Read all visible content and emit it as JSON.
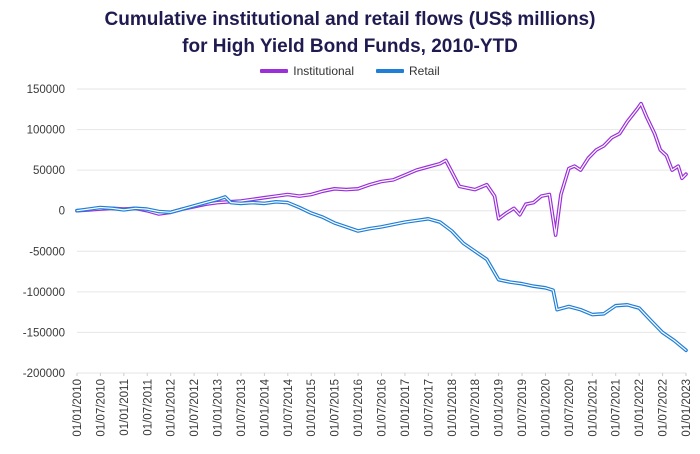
{
  "title_lines": [
    "Cumulative institutional and retail flows (US$ millions)",
    "for High Yield Bond Funds, 2010-YTD"
  ],
  "chart_data": {
    "type": "line",
    "ylim": [
      -200000,
      150000
    ],
    "yticks": [
      150000,
      100000,
      50000,
      0,
      -50000,
      -100000,
      -150000,
      -200000
    ],
    "ytick_labels": [
      "150000",
      "100000",
      "50000",
      "0",
      "-50000",
      "-100000",
      "-150000",
      "-200000"
    ],
    "xlim": [
      "2010-01-01",
      "2023-01-01"
    ],
    "xtick_labels": [
      "01/01/2010",
      "01/07/2010",
      "01/01/2011",
      "01/07/2011",
      "01/01/2012",
      "01/07/2012",
      "01/01/2013",
      "01/07/2013",
      "01/01/2014",
      "01/07/2014",
      "01/01/2015",
      "01/07/2015",
      "01/01/2016",
      "01/07/2016",
      "01/01/2017",
      "01/07/2017",
      "01/01/2018",
      "01/07/2018",
      "01/01/2019",
      "01/07/2019",
      "01/01/2020",
      "01/07/2020",
      "01/01/2021",
      "01/07/2021",
      "01/01/2022",
      "01/07/2022",
      "01/01/2023"
    ],
    "grid": true,
    "legend_position": "top-center",
    "series": [
      {
        "name": "Institutional",
        "color": "#9b30d9",
        "points": [
          [
            "2010-01-01",
            0
          ],
          [
            "2010-04-01",
            1000
          ],
          [
            "2010-07-01",
            2000
          ],
          [
            "2010-10-01",
            3000
          ],
          [
            "2011-01-01",
            2000
          ],
          [
            "2011-04-01",
            3000
          ],
          [
            "2011-07-01",
            0
          ],
          [
            "2011-10-01",
            -4000
          ],
          [
            "2012-01-01",
            -2000
          ],
          [
            "2012-04-01",
            2000
          ],
          [
            "2012-07-01",
            5000
          ],
          [
            "2012-10-01",
            8000
          ],
          [
            "2013-01-01",
            10000
          ],
          [
            "2013-04-01",
            11000
          ],
          [
            "2013-07-01",
            12000
          ],
          [
            "2013-10-01",
            14000
          ],
          [
            "2014-01-01",
            16000
          ],
          [
            "2014-04-01",
            18000
          ],
          [
            "2014-07-01",
            20000
          ],
          [
            "2014-10-01",
            18000
          ],
          [
            "2015-01-01",
            20000
          ],
          [
            "2015-04-01",
            24000
          ],
          [
            "2015-07-01",
            27000
          ],
          [
            "2015-10-01",
            26000
          ],
          [
            "2016-01-01",
            27000
          ],
          [
            "2016-04-01",
            32000
          ],
          [
            "2016-07-01",
            36000
          ],
          [
            "2016-10-01",
            38000
          ],
          [
            "2017-01-01",
            44000
          ],
          [
            "2017-04-01",
            50000
          ],
          [
            "2017-07-01",
            54000
          ],
          [
            "2017-10-01",
            58000
          ],
          [
            "2017-11-15",
            62000
          ],
          [
            "2018-01-01",
            48000
          ],
          [
            "2018-03-01",
            30000
          ],
          [
            "2018-05-01",
            28000
          ],
          [
            "2018-07-01",
            26000
          ],
          [
            "2018-10-01",
            32000
          ],
          [
            "2018-12-01",
            18000
          ],
          [
            "2019-01-01",
            -10000
          ],
          [
            "2019-03-01",
            -3000
          ],
          [
            "2019-05-01",
            3000
          ],
          [
            "2019-06-15",
            -5000
          ],
          [
            "2019-08-01",
            8000
          ],
          [
            "2019-10-01",
            10000
          ],
          [
            "2019-12-01",
            18000
          ],
          [
            "2020-02-01",
            20000
          ],
          [
            "2020-03-20",
            -30000
          ],
          [
            "2020-05-01",
            20000
          ],
          [
            "2020-07-01",
            52000
          ],
          [
            "2020-08-15",
            55000
          ],
          [
            "2020-10-01",
            50000
          ],
          [
            "2020-12-01",
            65000
          ],
          [
            "2021-02-01",
            75000
          ],
          [
            "2021-04-01",
            80000
          ],
          [
            "2021-06-01",
            90000
          ],
          [
            "2021-08-01",
            95000
          ],
          [
            "2021-10-01",
            110000
          ],
          [
            "2021-12-15",
            125000
          ],
          [
            "2022-01-15",
            132000
          ],
          [
            "2022-03-01",
            115000
          ],
          [
            "2022-05-01",
            95000
          ],
          [
            "2022-06-15",
            75000
          ],
          [
            "2022-08-01",
            68000
          ],
          [
            "2022-09-15",
            50000
          ],
          [
            "2022-11-01",
            55000
          ],
          [
            "2022-12-01",
            40000
          ],
          [
            "2023-01-01",
            45000
          ]
        ]
      },
      {
        "name": "Retail",
        "color": "#1f7fd6",
        "points": [
          [
            "2010-01-01",
            0
          ],
          [
            "2010-04-01",
            2000
          ],
          [
            "2010-07-01",
            4000
          ],
          [
            "2010-10-01",
            3000
          ],
          [
            "2011-01-01",
            1000
          ],
          [
            "2011-04-01",
            3000
          ],
          [
            "2011-07-01",
            2000
          ],
          [
            "2011-10-01",
            -1000
          ],
          [
            "2012-01-01",
            -2000
          ],
          [
            "2012-04-01",
            2000
          ],
          [
            "2012-07-01",
            6000
          ],
          [
            "2012-10-01",
            10000
          ],
          [
            "2013-01-01",
            14000
          ],
          [
            "2013-03-01",
            17000
          ],
          [
            "2013-04-15",
            10000
          ],
          [
            "2013-07-01",
            9000
          ],
          [
            "2013-10-01",
            10000
          ],
          [
            "2014-01-01",
            9000
          ],
          [
            "2014-04-01",
            11000
          ],
          [
            "2014-07-01",
            10000
          ],
          [
            "2014-10-01",
            4000
          ],
          [
            "2015-01-01",
            -3000
          ],
          [
            "2015-04-01",
            -8000
          ],
          [
            "2015-07-01",
            -15000
          ],
          [
            "2015-10-01",
            -20000
          ],
          [
            "2016-01-01",
            -25000
          ],
          [
            "2016-04-01",
            -22000
          ],
          [
            "2016-07-01",
            -20000
          ],
          [
            "2016-10-01",
            -17000
          ],
          [
            "2017-01-01",
            -14000
          ],
          [
            "2017-04-01",
            -12000
          ],
          [
            "2017-07-01",
            -10000
          ],
          [
            "2017-10-01",
            -14000
          ],
          [
            "2018-01-01",
            -25000
          ],
          [
            "2018-04-01",
            -40000
          ],
          [
            "2018-07-01",
            -50000
          ],
          [
            "2018-10-01",
            -60000
          ],
          [
            "2019-01-01",
            -85000
          ],
          [
            "2019-04-01",
            -88000
          ],
          [
            "2019-07-01",
            -90000
          ],
          [
            "2019-10-01",
            -93000
          ],
          [
            "2020-01-01",
            -95000
          ],
          [
            "2020-03-01",
            -98000
          ],
          [
            "2020-04-01",
            -122000
          ],
          [
            "2020-07-01",
            -118000
          ],
          [
            "2020-10-01",
            -122000
          ],
          [
            "2021-01-01",
            -128000
          ],
          [
            "2021-04-01",
            -127000
          ],
          [
            "2021-07-01",
            -117000
          ],
          [
            "2021-10-01",
            -116000
          ],
          [
            "2022-01-01",
            -120000
          ],
          [
            "2022-04-01",
            -135000
          ],
          [
            "2022-07-01",
            -150000
          ],
          [
            "2022-10-01",
            -160000
          ],
          [
            "2023-01-01",
            -172000
          ]
        ]
      }
    ]
  }
}
